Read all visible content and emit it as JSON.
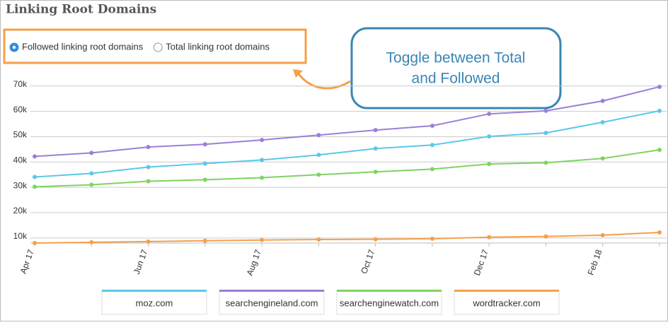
{
  "header": {
    "title": "Linking Root Domains"
  },
  "controls": {
    "options": [
      {
        "label": "Followed linking root domains",
        "selected": true
      },
      {
        "label": "Total linking root domains",
        "selected": false
      }
    ]
  },
  "callout": {
    "lines": [
      "Toggle between Total",
      "and Followed"
    ]
  },
  "chart_data": {
    "type": "line",
    "categories": [
      "Apr 17",
      null,
      "Jun 17",
      null,
      "Aug 17",
      null,
      "Oct 17",
      null,
      "Dec 17",
      null,
      "Feb 18",
      null
    ],
    "series": [
      {
        "name": "moz.com",
        "color": "#5bc8ea",
        "values": [
          34100,
          35500,
          38000,
          39400,
          40800,
          42800,
          45300,
          46700,
          50100,
          51500,
          55700,
          60200
        ]
      },
      {
        "name": "searchengineland.com",
        "color": "#9b7fd9",
        "values": [
          42200,
          43600,
          45900,
          47000,
          48700,
          50600,
          52600,
          54300,
          59000,
          60200,
          64100,
          69700
        ]
      },
      {
        "name": "searchenginewatch.com",
        "color": "#7ed461",
        "values": [
          30200,
          31000,
          32400,
          33000,
          33800,
          35000,
          36100,
          37200,
          39200,
          39700,
          41400,
          44800
        ]
      },
      {
        "name": "wordtracker.com",
        "color": "#f5a04a",
        "values": [
          8000,
          8300,
          8600,
          8900,
          9200,
          9400,
          9500,
          9700,
          10300,
          10600,
          11100,
          12200
        ]
      }
    ],
    "ylim": [
      8000,
      73000
    ],
    "yticks": [
      {
        "value": 10000,
        "label": "10k"
      },
      {
        "value": 20000,
        "label": "20k"
      },
      {
        "value": 30000,
        "label": "30k"
      },
      {
        "value": 40000,
        "label": "40k"
      },
      {
        "value": 50000,
        "label": "50k"
      },
      {
        "value": 60000,
        "label": "60k"
      },
      {
        "value": 70000,
        "label": "70k"
      }
    ],
    "grid": true
  }
}
